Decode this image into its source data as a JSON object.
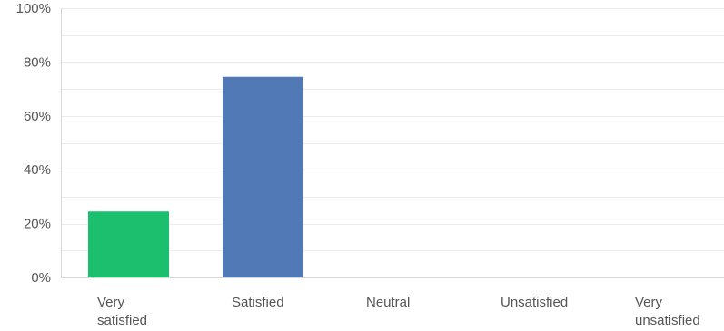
{
  "chart_data": {
    "type": "bar",
    "categories": [
      [
        "Very",
        "satisfied"
      ],
      [
        "Satisfied"
      ],
      [
        "Neutral"
      ],
      [
        "Unsatisfied"
      ],
      [
        "Very",
        "unsatisfied"
      ]
    ],
    "values": [
      24.5,
      74.5,
      0,
      0,
      0
    ],
    "bar_colors": [
      "#1bbf6e",
      "#5079b5",
      "#888888",
      "#888888",
      "#888888"
    ],
    "ylim": [
      0,
      100
    ],
    "y_ticks": [
      0,
      20,
      40,
      60,
      80,
      100
    ],
    "y_tick_labels": [
      "0%",
      "20%",
      "40%",
      "60%",
      "80%",
      "100%"
    ],
    "grid": true,
    "grid_color": "#ececec",
    "axis_color": "#d8d8d8",
    "title": "",
    "xlabel": "",
    "ylabel": ""
  }
}
